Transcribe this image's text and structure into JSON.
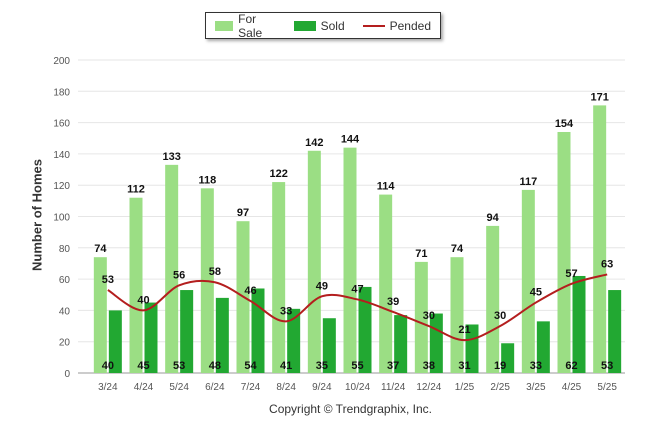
{
  "chart_data": {
    "type": "bar",
    "categories": [
      "3/24",
      "4/24",
      "5/24",
      "6/24",
      "7/24",
      "8/24",
      "9/24",
      "10/24",
      "11/24",
      "12/24",
      "1/25",
      "2/25",
      "3/25",
      "4/25",
      "5/25"
    ],
    "series": [
      {
        "name": "For Sale",
        "type": "bar",
        "color": "#9bde84",
        "values": [
          74,
          112,
          133,
          118,
          97,
          122,
          142,
          144,
          114,
          71,
          74,
          94,
          117,
          154,
          171
        ]
      },
      {
        "name": "Sold",
        "type": "bar",
        "color": "#22a832",
        "values": [
          40,
          45,
          53,
          48,
          54,
          41,
          35,
          55,
          37,
          38,
          31,
          19,
          33,
          62,
          53
        ]
      },
      {
        "name": "Pended",
        "type": "line",
        "color": "#b41e1e",
        "values": [
          53,
          40,
          56,
          58,
          46,
          33,
          49,
          47,
          39,
          30,
          21,
          30,
          45,
          57,
          63
        ]
      }
    ],
    "ylabel": "Number of Homes",
    "xlabel": "",
    "ylim": [
      0,
      200
    ],
    "yticks": [
      0,
      20,
      40,
      60,
      80,
      100,
      120,
      140,
      160,
      180,
      200
    ],
    "grid": true,
    "legend_position": "top-center"
  },
  "footer": {
    "copyright": "Copyright © Trendgraphix, Inc."
  }
}
